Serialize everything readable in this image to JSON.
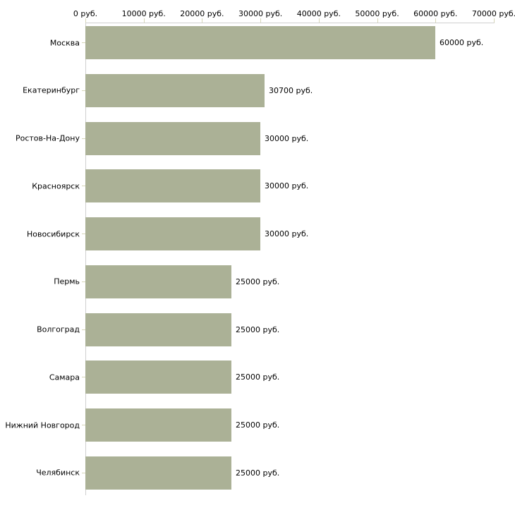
{
  "chart_data": {
    "type": "bar",
    "orientation": "horizontal",
    "title": "",
    "xlabel": "",
    "ylabel": "",
    "categories": [
      "Москва",
      "Екатеринбург",
      "Ростов-На-Дону",
      "Красноярск",
      "Новосибирск",
      "Пермь",
      "Волгоград",
      "Самара",
      "Нижний Новгород",
      "Челябинск"
    ],
    "values": [
      60000,
      30700,
      30000,
      30000,
      30000,
      25000,
      25000,
      25000,
      25000,
      25000
    ],
    "value_labels": [
      "60000 руб.",
      "30700 руб.",
      "30000 руб.",
      "30000 руб.",
      "30000 руб.",
      "25000 руб.",
      "25000 руб.",
      "25000 руб.",
      "25000 руб.",
      "25000 руб."
    ],
    "x_tick_labels": [
      "0 руб.",
      "10000 руб.",
      "20000 руб.",
      "30000 руб.",
      "40000 руб.",
      "50000 руб.",
      "60000 руб.",
      "70000 руб."
    ],
    "xlim": [
      0,
      70000
    ],
    "x_tick_step": 10000,
    "grid": false,
    "legend": "none",
    "colors": {
      "bar": "#abb196",
      "axis_line": "#cfcfcf",
      "tick": "#d6d6b8",
      "text": "#000000",
      "background": "#ffffff"
    }
  }
}
